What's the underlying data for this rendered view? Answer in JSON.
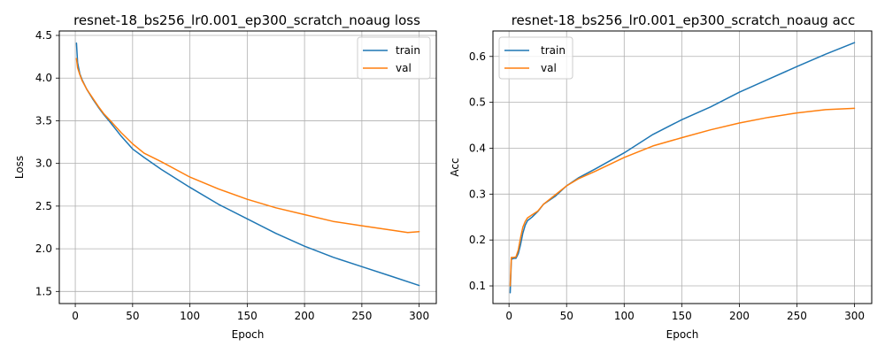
{
  "colors": {
    "train": "#1f77b4",
    "val": "#ff7f0e",
    "grid": "#b0b0b0",
    "frame": "#000000"
  },
  "chart_data": [
    {
      "type": "line",
      "title": "resnet-18_bs256_lr0.001_ep300_scratch_noaug loss",
      "xlabel": "Epoch",
      "ylabel": "Loss",
      "xlim": [
        -13.95,
        314.95
      ],
      "ylim": [
        1.358,
        4.552
      ],
      "xticks": [
        0,
        50,
        100,
        150,
        200,
        250,
        300
      ],
      "yticks": [
        1.5,
        2.0,
        2.5,
        3.0,
        3.5,
        4.0,
        4.5
      ],
      "ytick_labels": [
        "1.5",
        "2.0",
        "2.5",
        "3.0",
        "3.5",
        "4.0",
        "4.5"
      ],
      "grid": true,
      "legend": "upper right",
      "series": [
        {
          "name": "train",
          "x": [
            1,
            2,
            4,
            6,
            10,
            15,
            20,
            25,
            30,
            40,
            50,
            60,
            75,
            100,
            125,
            150,
            175,
            200,
            225,
            250,
            275,
            300
          ],
          "y": [
            4.41,
            4.18,
            4.05,
            3.98,
            3.87,
            3.76,
            3.66,
            3.57,
            3.49,
            3.32,
            3.17,
            3.07,
            2.93,
            2.72,
            2.52,
            2.35,
            2.18,
            2.03,
            1.9,
            1.79,
            1.68,
            1.57
          ]
        },
        {
          "name": "val",
          "x": [
            1,
            2,
            4,
            6,
            10,
            15,
            20,
            25,
            30,
            40,
            50,
            60,
            75,
            100,
            125,
            150,
            175,
            200,
            225,
            250,
            275,
            290,
            300
          ],
          "y": [
            4.23,
            4.12,
            4.04,
            3.97,
            3.87,
            3.77,
            3.67,
            3.58,
            3.51,
            3.36,
            3.23,
            3.12,
            3.02,
            2.84,
            2.7,
            2.58,
            2.48,
            2.4,
            2.32,
            2.27,
            2.22,
            2.19,
            2.2
          ]
        }
      ]
    },
    {
      "type": "line",
      "title": "resnet-18_bs256_lr0.001_ep300_scratch_noaug acc",
      "xlabel": "Epoch",
      "ylabel": "Acc",
      "xlim": [
        -13.95,
        314.95
      ],
      "ylim": [
        0.0615,
        0.6555
      ],
      "xticks": [
        0,
        50,
        100,
        150,
        200,
        250,
        300
      ],
      "yticks": [
        0.1,
        0.2,
        0.3,
        0.4,
        0.5,
        0.6
      ],
      "ytick_labels": [
        "0.1",
        "0.2",
        "0.3",
        "0.4",
        "0.5",
        "0.6"
      ],
      "grid": true,
      "legend": "upper left",
      "series": [
        {
          "name": "train",
          "x": [
            1,
            2,
            4,
            6,
            8,
            10,
            12,
            14,
            16,
            20,
            25,
            30,
            40,
            50,
            60,
            75,
            100,
            125,
            150,
            175,
            200,
            225,
            250,
            275,
            300
          ],
          "y": [
            0.085,
            0.158,
            0.16,
            0.16,
            0.17,
            0.19,
            0.215,
            0.232,
            0.242,
            0.25,
            0.262,
            0.278,
            0.295,
            0.318,
            0.335,
            0.355,
            0.39,
            0.43,
            0.462,
            0.49,
            0.522,
            0.55,
            0.578,
            0.605,
            0.63
          ]
        },
        {
          "name": "val",
          "x": [
            1,
            2,
            4,
            6,
            8,
            10,
            12,
            14,
            16,
            20,
            25,
            30,
            40,
            50,
            60,
            75,
            100,
            125,
            150,
            175,
            200,
            225,
            250,
            275,
            300
          ],
          "y": [
            0.1,
            0.162,
            0.162,
            0.163,
            0.178,
            0.205,
            0.228,
            0.24,
            0.248,
            0.255,
            0.263,
            0.278,
            0.298,
            0.318,
            0.333,
            0.35,
            0.38,
            0.405,
            0.423,
            0.44,
            0.455,
            0.467,
            0.477,
            0.484,
            0.487
          ]
        }
      ]
    }
  ]
}
